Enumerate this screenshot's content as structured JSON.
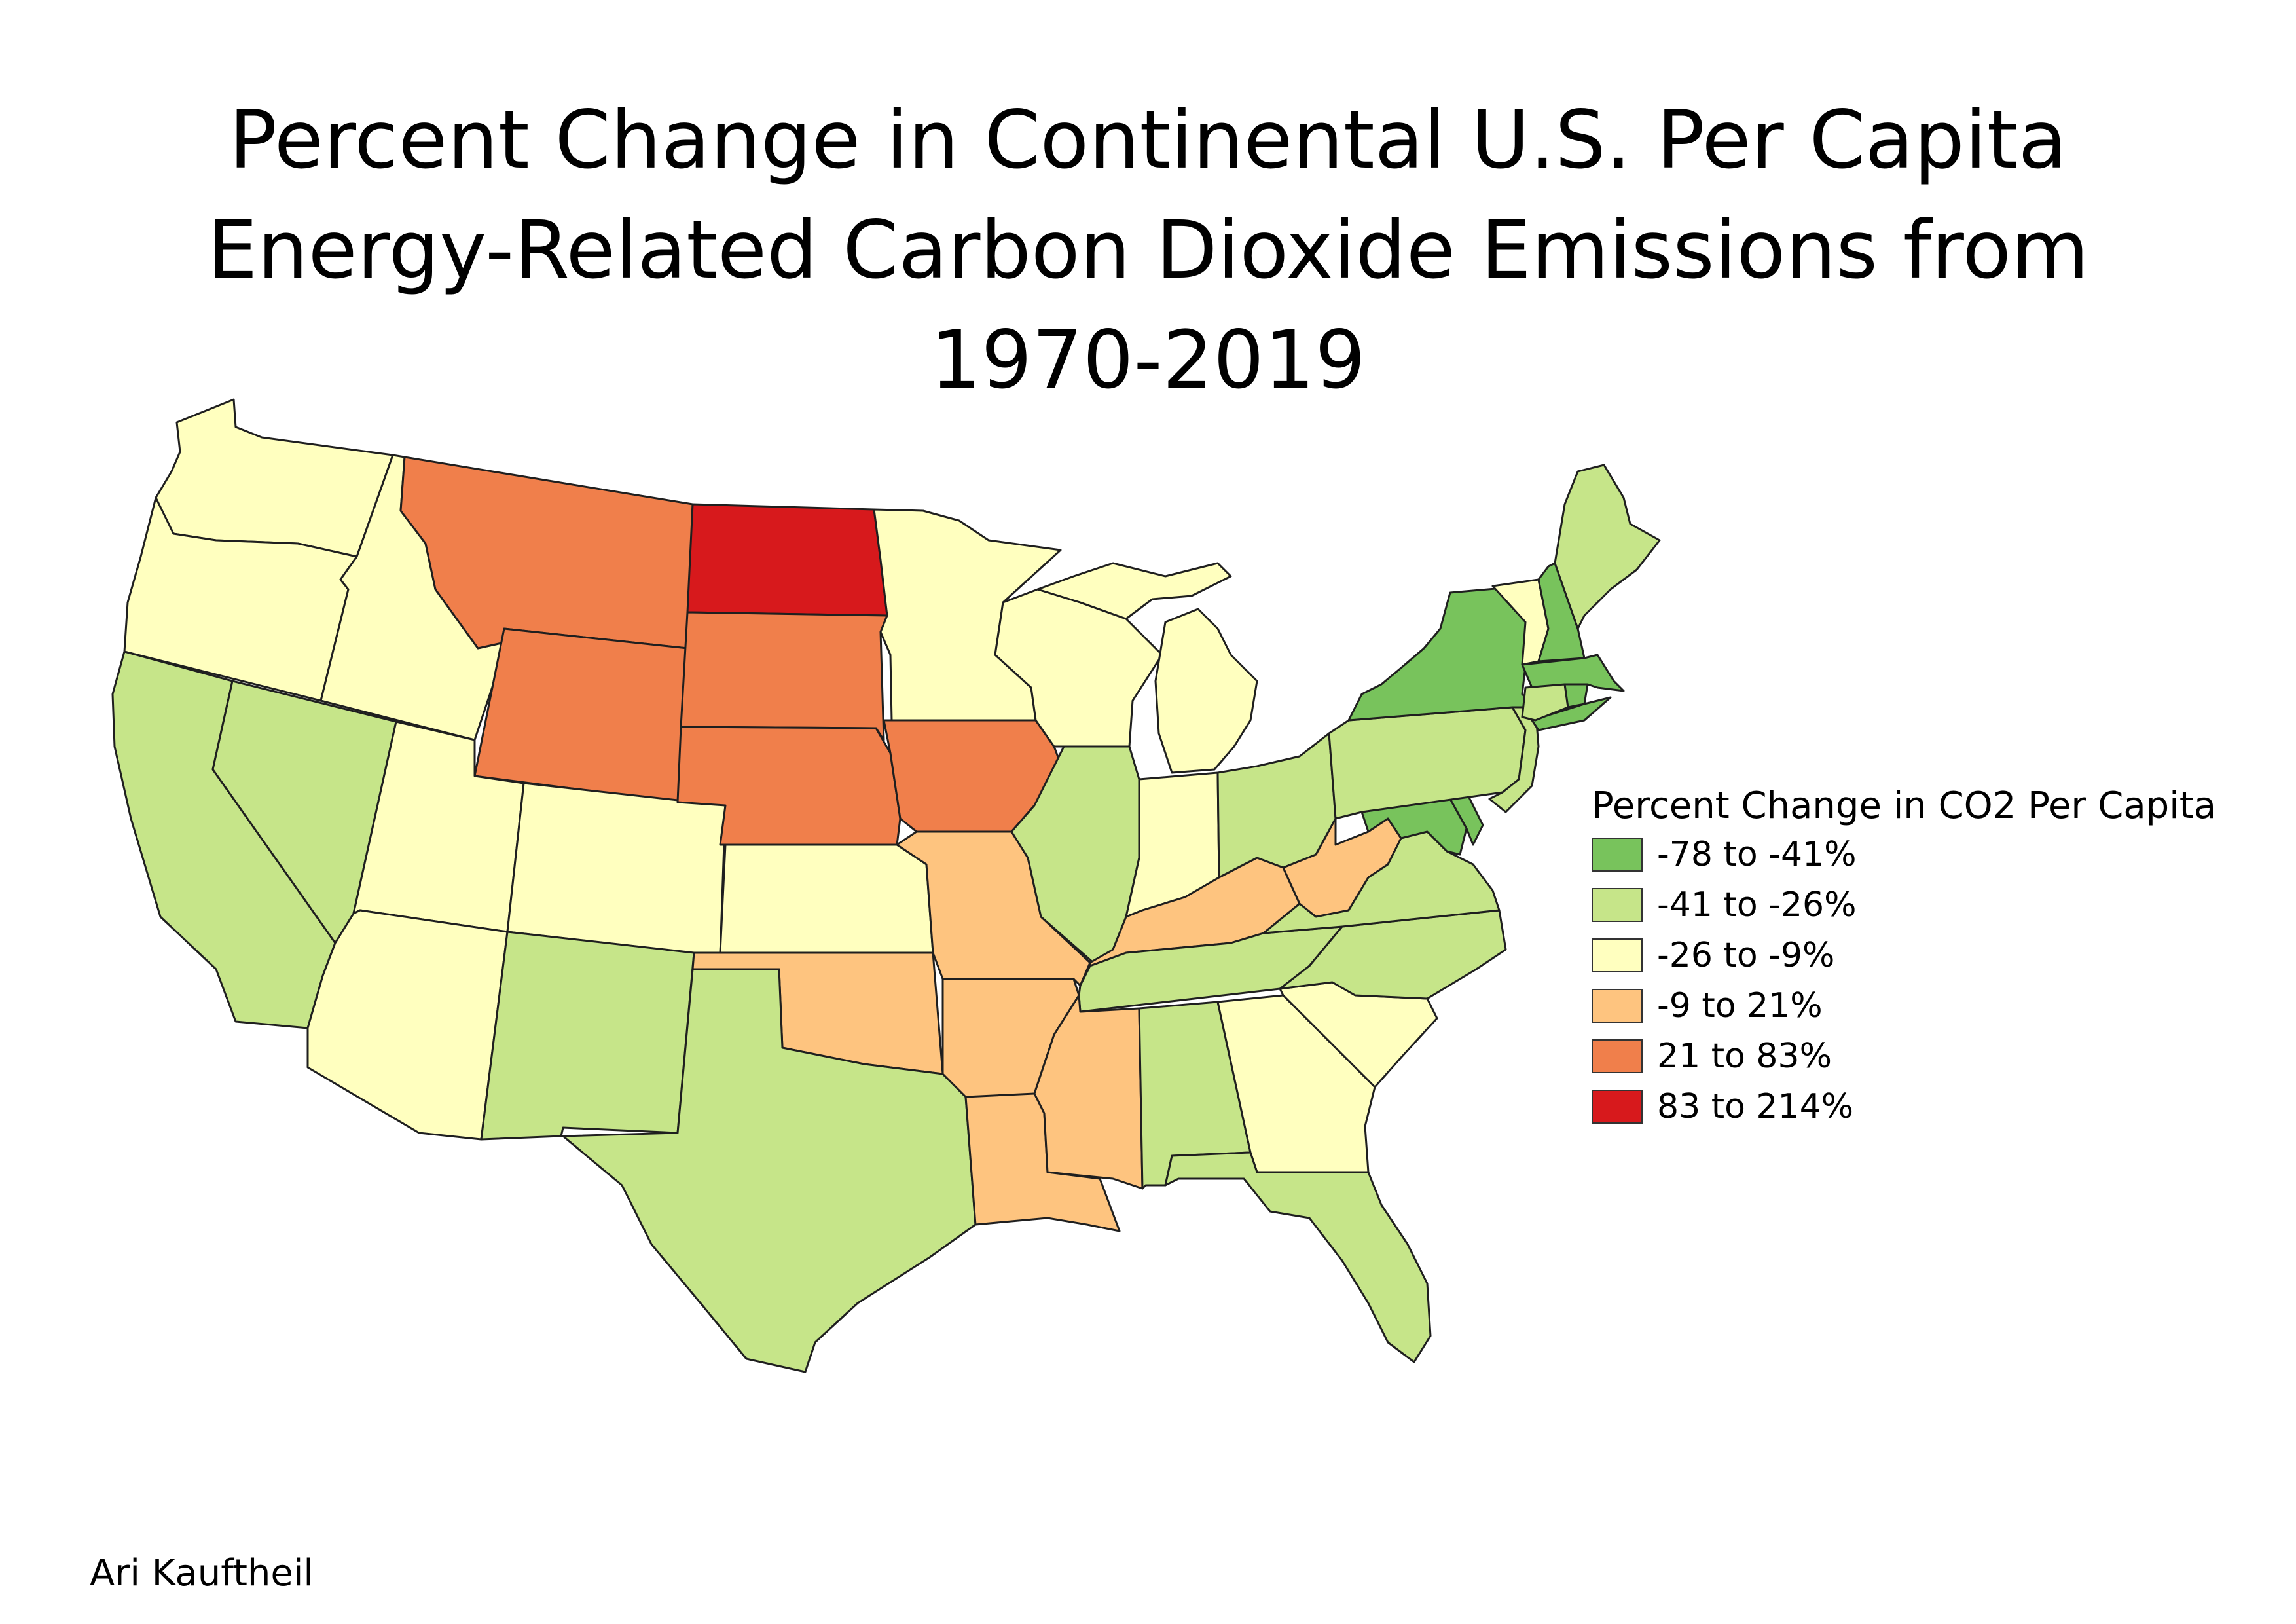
{
  "title": {
    "line1": "Percent Change in Continental U.S. Per Capita",
    "line2": "Energy-Related Carbon Dioxide Emissions from",
    "line3": "1970-2019"
  },
  "legend": {
    "title": "Percent Change in CO2 Per Capita",
    "classes": [
      {
        "label": "-78 to -41%",
        "color": "#78c35c"
      },
      {
        "label": "-41 to -26%",
        "color": "#c6e589"
      },
      {
        "label": "-26 to -9%",
        "color": "#ffffbf"
      },
      {
        "label": "-9 to 21%",
        "color": "#fec47f"
      },
      {
        "label": "21 to 83%",
        "color": "#f07f4b"
      },
      {
        "label": "83 to 214%",
        "color": "#d7191c"
      }
    ]
  },
  "state_class": {
    "WA": 2,
    "OR": 2,
    "ID": 2,
    "UT": 2,
    "CO": 2,
    "KS": 2,
    "AZ": 2,
    "MN": 2,
    "WI": 2,
    "MI": 2,
    "IN": 2,
    "GA": 2,
    "SC": 2,
    "VT": 2,
    "CA": 1,
    "NV": 1,
    "NM": 1,
    "TX": 1,
    "IL": 1,
    "OH": 1,
    "PA": 1,
    "VA": 1,
    "NC": 1,
    "TN": 1,
    "AL": 1,
    "FL": 1,
    "ME": 1,
    "NJ": 1,
    "CT": 1,
    "NY": 0,
    "NH": 0,
    "MA": 0,
    "MD": 0,
    "DE": 0,
    "RI": 0,
    "MO": 3,
    "OK": 3,
    "AR": 3,
    "LA": 3,
    "MS": 3,
    "KY": 3,
    "WV": 3,
    "MT": 4,
    "WY": 4,
    "SD": 4,
    "NE": 4,
    "IA": 4,
    "ND": 5
  },
  "credit": "Ari Kauftheil"
}
